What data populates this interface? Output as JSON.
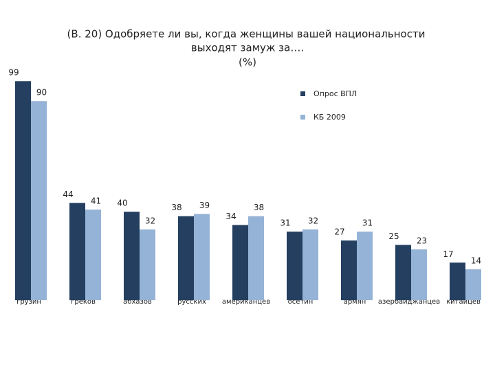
{
  "chart_data": {
    "type": "bar",
    "title": [
      "(В. 20)  Одобряете ли вы, когда женщины вашей национальности",
      "выходят замуж за…."
    ],
    "subtitle": "(%)",
    "categories": [
      "грузин",
      "греков",
      "абхазов",
      "русских",
      "американцев",
      "осетин",
      "армян",
      "азербайджанцев",
      "китайцев"
    ],
    "series": [
      {
        "name": "Опрос ВПЛ",
        "color": "#243f60",
        "values": [
          99,
          44,
          40,
          38,
          34,
          31,
          27,
          25,
          17
        ]
      },
      {
        "name": "КБ 2009",
        "color": "#95b3d7",
        "values": [
          90,
          41,
          32,
          39,
          38,
          32,
          31,
          23,
          14
        ]
      }
    ],
    "ylim": [
      0,
      100
    ]
  }
}
